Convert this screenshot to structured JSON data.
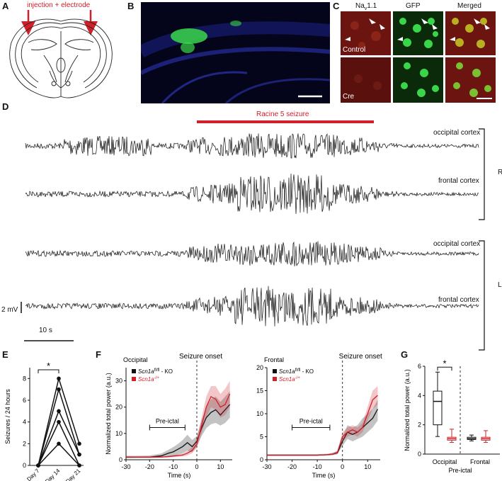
{
  "panels": {
    "A": {
      "label": "A",
      "annotation": "injection + electrode"
    },
    "B": {
      "label": "B"
    },
    "C": {
      "label": "C",
      "col_headers": [
        "Na",
        "v",
        "1.1",
        "GFP",
        "Merged"
      ],
      "row_labels": [
        "Control",
        "Cre"
      ]
    },
    "D": {
      "label": "D",
      "seizure_label": "Racine 5 seizure",
      "trace_labels": [
        "occipital cortex",
        "frontal cortex",
        "occipital cortex",
        "frontal cortex"
      ],
      "hemisphere_labels": [
        "R",
        "L"
      ],
      "scale_v": "2 mV",
      "scale_t": "10 s"
    },
    "E": {
      "label": "E"
    },
    "F": {
      "label": "F"
    },
    "G": {
      "label": "G"
    }
  },
  "colors": {
    "red": "#d0202a",
    "black": "#111111",
    "green": "#3ad64a",
    "blue": "#2b2f9a"
  },
  "chart_data": [
    {
      "id": "E",
      "type": "line",
      "ylabel": "Seizures / 24 hours",
      "categories": [
        "Day 7",
        "Day 14",
        "Day 21"
      ],
      "yticks": [
        0,
        2,
        4,
        6,
        8
      ],
      "ylim": [
        0,
        9
      ],
      "significance": "*",
      "series": [
        {
          "values": [
            0,
            8,
            2
          ]
        },
        {
          "values": [
            0,
            7,
            1
          ]
        },
        {
          "values": [
            0,
            5,
            1
          ]
        },
        {
          "values": [
            0,
            4,
            0
          ]
        },
        {
          "values": [
            0,
            2,
            0
          ]
        }
      ]
    },
    {
      "id": "F1",
      "type": "line",
      "title": "Occipital",
      "xlabel": "Time (s)",
      "ylabel": "Normalized total power (a.u.)",
      "xlim": [
        -30,
        15
      ],
      "ylim": [
        0,
        35
      ],
      "xticks": [
        -30,
        -20,
        -10,
        0,
        10
      ],
      "yticks": [
        0,
        10,
        20,
        30
      ],
      "onset_label": "Seizure onset",
      "bracket_label": "Pre-ictal",
      "bracket": [
        -20,
        -5
      ],
      "legend": [
        "KO",
        "Scn1a"
      ],
      "series": [
        {
          "color": "#111111",
          "x": [
            -30,
            -25,
            -20,
            -15,
            -12,
            -10,
            -8,
            -6,
            -4,
            -2,
            0,
            2,
            4,
            6,
            8,
            10,
            12,
            14
          ],
          "y": [
            1,
            1,
            1,
            1.5,
            2.5,
            3,
            4,
            5,
            6.5,
            5,
            7,
            12,
            16,
            18,
            19,
            17,
            19,
            21
          ],
          "lo": [
            0.5,
            0.6,
            0.6,
            0.8,
            1.2,
            1.4,
            2,
            2.5,
            3.5,
            2.8,
            5,
            9,
            12,
            13.5,
            14,
            13,
            14,
            16
          ],
          "hi": [
            1.5,
            1.5,
            1.6,
            2.4,
            3.8,
            4.8,
            6,
            7.5,
            9.5,
            7.5,
            9,
            15,
            20,
            23,
            24,
            22,
            24,
            26
          ]
        },
        {
          "color": "#d0202a",
          "x": [
            -30,
            -25,
            -20,
            -15,
            -12,
            -10,
            -8,
            -6,
            -4,
            -2,
            0,
            2,
            4,
            6,
            8,
            10,
            12,
            14
          ],
          "y": [
            1,
            1,
            1,
            1,
            1.2,
            1.4,
            1.6,
            1.8,
            2.5,
            3.5,
            6,
            13,
            20,
            24,
            23,
            20,
            21,
            25
          ],
          "lo": [
            0.8,
            0.8,
            0.8,
            0.8,
            0.9,
            1,
            1.1,
            1.2,
            1.6,
            2.5,
            4.5,
            10,
            16,
            20,
            19,
            16,
            17,
            20
          ],
          "hi": [
            1.2,
            1.2,
            1.2,
            1.3,
            1.5,
            1.8,
            2.1,
            2.4,
            3.4,
            4.8,
            8,
            16,
            24,
            28,
            28,
            25,
            27,
            30
          ]
        }
      ]
    },
    {
      "id": "F2",
      "type": "line",
      "title": "Frontal",
      "xlabel": "Time (s)",
      "ylabel": "",
      "xlim": [
        -30,
        15
      ],
      "ylim": [
        0,
        20
      ],
      "xticks": [
        -30,
        -20,
        -10,
        0,
        10
      ],
      "yticks": [
        0,
        5,
        10,
        15,
        20
      ],
      "onset_label": "Seizure onset",
      "bracket_label": "Pre-ictal",
      "bracket": [
        -20,
        -5
      ],
      "legend": [
        "KO",
        "Scn1a"
      ],
      "series": [
        {
          "color": "#111111",
          "x": [
            -30,
            -25,
            -20,
            -15,
            -10,
            -6,
            -4,
            -2,
            0,
            2,
            4,
            6,
            8,
            10,
            12,
            14
          ],
          "y": [
            1,
            1,
            1,
            1,
            1,
            1.1,
            1.2,
            1.5,
            4,
            6,
            5.5,
            6,
            7,
            8,
            9,
            11
          ],
          "lo": [
            0.8,
            0.8,
            0.8,
            0.8,
            0.8,
            0.9,
            1,
            1.2,
            3,
            4.5,
            4,
            4.5,
            5,
            6,
            7,
            8.5
          ],
          "hi": [
            1.2,
            1.2,
            1.2,
            1.2,
            1.2,
            1.3,
            1.5,
            1.9,
            5,
            7.5,
            7,
            7.5,
            9,
            10,
            11,
            13
          ]
        },
        {
          "color": "#d0202a",
          "x": [
            -30,
            -25,
            -20,
            -15,
            -10,
            -6,
            -4,
            -2,
            0,
            2,
            4,
            6,
            8,
            10,
            12,
            14
          ],
          "y": [
            1,
            1,
            1,
            1,
            1,
            1.1,
            1.2,
            1.6,
            5,
            6,
            6.5,
            6,
            7,
            10,
            13,
            14
          ],
          "lo": [
            0.9,
            0.9,
            0.9,
            0.9,
            0.9,
            1,
            1,
            1.3,
            4,
            5,
            5.5,
            5,
            6,
            8.5,
            11,
            12
          ],
          "hi": [
            1.1,
            1.1,
            1.1,
            1.1,
            1.1,
            1.2,
            1.4,
            1.9,
            6,
            7,
            7.5,
            7,
            8,
            11.5,
            15,
            16
          ]
        }
      ]
    },
    {
      "id": "G",
      "type": "box",
      "ylabel": "Normalized total power (a.u.)",
      "ylim": [
        0,
        6
      ],
      "yticks": [
        0,
        2,
        4,
        6
      ],
      "groups": [
        "Occipital",
        "Frontal"
      ],
      "xlabel": "Pre-ictal",
      "significance": "*",
      "boxes": [
        {
          "group": "Occipital",
          "color": "#111111",
          "min": 1.2,
          "q1": 2.0,
          "median": 3.6,
          "q3": 4.3,
          "max": 5.6
        },
        {
          "group": "Occipital",
          "color": "#d0202a",
          "min": 0.8,
          "q1": 0.95,
          "median": 1.05,
          "q3": 1.15,
          "max": 1.7
        },
        {
          "group": "Frontal",
          "color": "#111111",
          "min": 0.9,
          "q1": 1.0,
          "median": 1.05,
          "q3": 1.15,
          "max": 1.3
        },
        {
          "group": "Frontal",
          "color": "#d0202a",
          "min": 0.8,
          "q1": 0.95,
          "median": 1.05,
          "q3": 1.15,
          "max": 1.6
        }
      ]
    }
  ]
}
